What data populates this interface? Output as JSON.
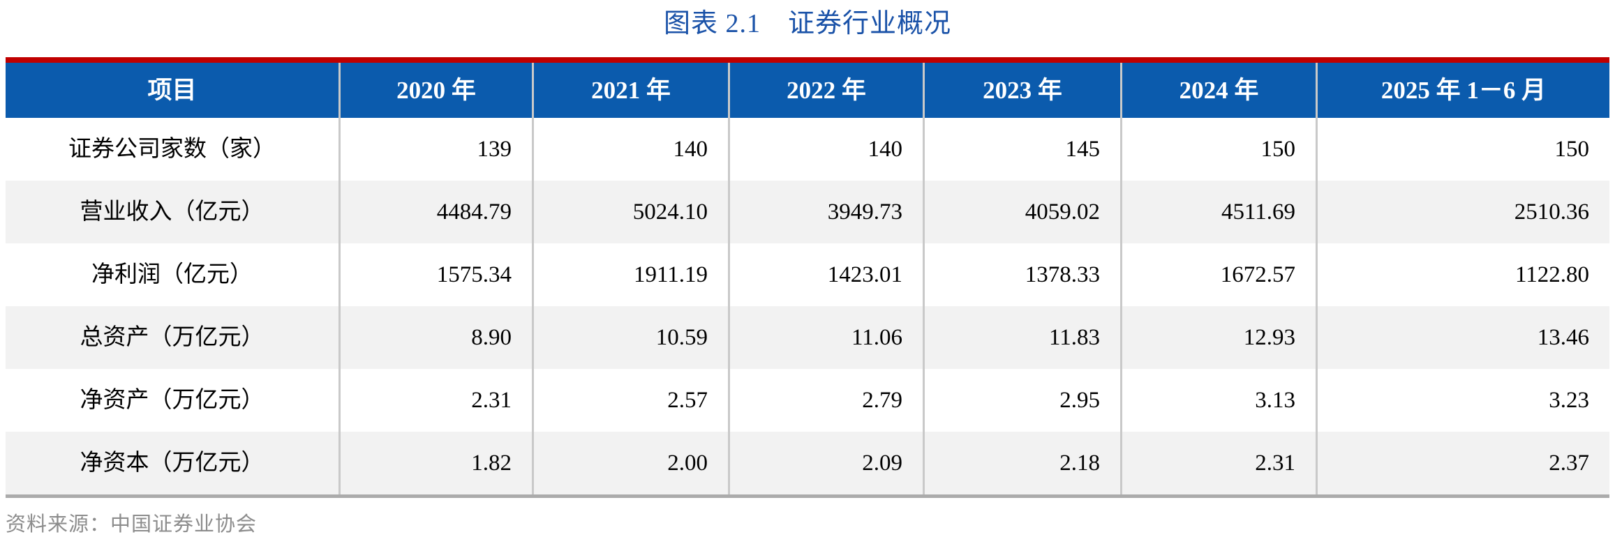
{
  "title": "图表 2.1　证券行业概况",
  "table": {
    "headers": [
      "项目",
      "2020 年",
      "2021 年",
      "2022 年",
      "2023 年",
      "2024 年",
      "2025 年 1－6 月"
    ],
    "rows": [
      {
        "label": "证券公司家数（家）",
        "values": [
          "139",
          "140",
          "140",
          "145",
          "150",
          "150"
        ]
      },
      {
        "label": "营业收入（亿元）",
        "values": [
          "4484.79",
          "5024.10",
          "3949.73",
          "4059.02",
          "4511.69",
          "2510.36"
        ]
      },
      {
        "label": "净利润（亿元）",
        "values": [
          "1575.34",
          "1911.19",
          "1423.01",
          "1378.33",
          "1672.57",
          "1122.80"
        ]
      },
      {
        "label": "总资产（万亿元）",
        "values": [
          "8.90",
          "10.59",
          "11.06",
          "11.83",
          "12.93",
          "13.46"
        ]
      },
      {
        "label": "净资产（万亿元）",
        "values": [
          "2.31",
          "2.57",
          "2.79",
          "2.95",
          "3.13",
          "3.23"
        ]
      },
      {
        "label": "净资本（万亿元）",
        "values": [
          "1.82",
          "2.00",
          "2.09",
          "2.18",
          "2.31",
          "2.37"
        ]
      }
    ]
  },
  "source": "资料来源：中国证券业协会",
  "colors": {
    "title_text": "#1a52a8",
    "top_accent": "#c00000",
    "header_bg": "#0b5bad",
    "header_text": "#ffffff",
    "row_stripe": "#f2f2f2",
    "divider": "#c9c9c9",
    "bottom_rule": "#ababab",
    "source_text": "#8c8c8c"
  }
}
